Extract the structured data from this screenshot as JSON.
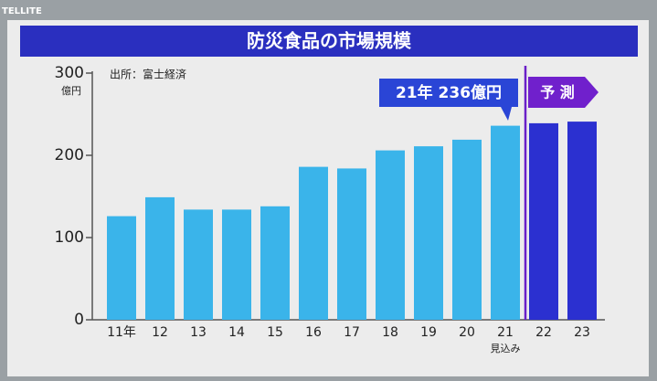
{
  "watermark": "TELLITE",
  "chart_data": {
    "type": "bar",
    "title": "防災食品の市場規模",
    "source": "出所：富士経済",
    "y_unit": "億円",
    "categories": [
      "11年",
      "12",
      "13",
      "14",
      "15",
      "16",
      "17",
      "18",
      "19",
      "20",
      "21",
      "22",
      "23"
    ],
    "category_notes": [
      null,
      null,
      null,
      null,
      null,
      null,
      null,
      null,
      null,
      null,
      "見込み",
      null,
      null
    ],
    "values": [
      126,
      149,
      134,
      134,
      138,
      186,
      184,
      206,
      211,
      219,
      236,
      239,
      241
    ],
    "colors": [
      "#3ab4ea",
      "#3ab4ea",
      "#3ab4ea",
      "#3ab4ea",
      "#3ab4ea",
      "#3ab4ea",
      "#3ab4ea",
      "#3ab4ea",
      "#3ab4ea",
      "#3ab4ea",
      "#3ab4ea",
      "#2b30d0",
      "#2b30d0"
    ],
    "annotation": "21年 236億円",
    "forecast_label": "予 測",
    "ylim": [
      0,
      300
    ],
    "yticks": [
      0,
      100,
      200,
      300
    ],
    "grid": false
  }
}
